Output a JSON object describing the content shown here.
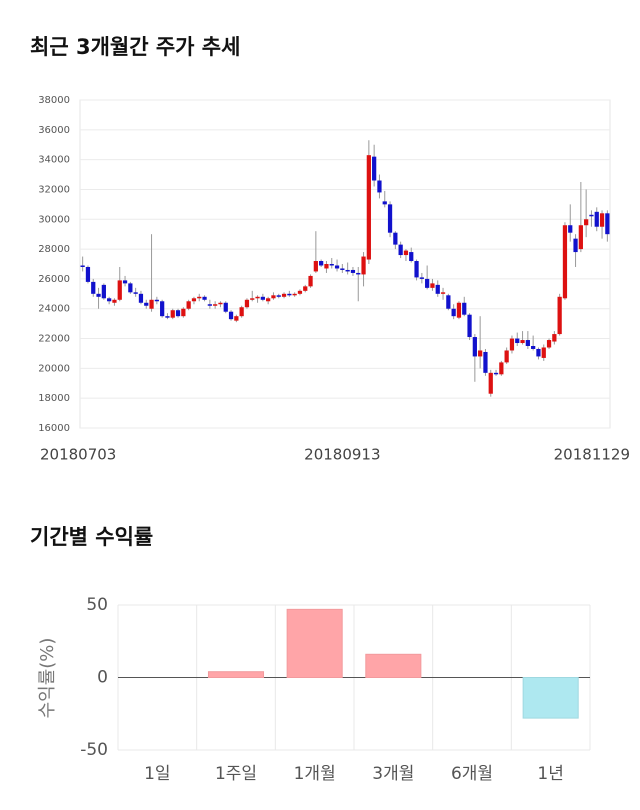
{
  "chart_data": [
    {
      "type": "candlestick",
      "title": "최근 3개월간 주가 추세",
      "categories": [
        "20180703",
        null,
        null,
        null,
        null,
        null,
        null,
        null,
        null,
        null,
        null,
        null,
        null,
        null,
        null,
        null,
        null,
        null,
        null,
        null,
        null,
        null,
        null,
        null,
        null,
        null,
        null,
        null,
        null,
        null,
        null,
        null,
        null,
        null,
        null,
        null,
        null,
        null,
        null,
        null,
        null,
        null,
        null,
        null,
        null,
        null,
        null,
        null,
        null,
        "20180913",
        null,
        null,
        null,
        null,
        null,
        null,
        null,
        null,
        null,
        null,
        null,
        null,
        null,
        null,
        null,
        null,
        null,
        null,
        null,
        null,
        null,
        null,
        null,
        null,
        null,
        null,
        null,
        null,
        null,
        null,
        null,
        null,
        null,
        null,
        null,
        null,
        null,
        null,
        null,
        null,
        null,
        null,
        null,
        null,
        null,
        null,
        null,
        null,
        null,
        "20181129"
      ],
      "values": [
        [
          26900,
          27500,
          26500,
          26800
        ],
        [
          26800,
          26900,
          25700,
          25800
        ],
        [
          25800,
          26000,
          24800,
          25000
        ],
        [
          25000,
          25400,
          24000,
          24800
        ],
        [
          25600,
          25700,
          24600,
          24700
        ],
        [
          24700,
          24800,
          24300,
          24500
        ],
        [
          24400,
          24700,
          24200,
          24600
        ],
        [
          24600,
          26800,
          24500,
          25900
        ],
        [
          25900,
          26200,
          25500,
          25700
        ],
        [
          25700,
          25800,
          25000,
          25100
        ],
        [
          25100,
          25400,
          24800,
          25000
        ],
        [
          25000,
          25200,
          24300,
          24400
        ],
        [
          24400,
          24600,
          24000,
          24200
        ],
        [
          24000,
          29000,
          23800,
          24600
        ],
        [
          24600,
          24800,
          24300,
          24500
        ],
        [
          24500,
          24600,
          23400,
          23500
        ],
        [
          23500,
          23700,
          23300,
          23400
        ],
        [
          23400,
          24000,
          23300,
          23900
        ],
        [
          23900,
          24000,
          23400,
          23500
        ],
        [
          23500,
          24100,
          23400,
          24000
        ],
        [
          24000,
          24600,
          23900,
          24500
        ],
        [
          24500,
          24800,
          24300,
          24700
        ],
        [
          24700,
          25000,
          24500,
          24800
        ],
        [
          24800,
          24900,
          24500,
          24600
        ],
        [
          24300,
          24600,
          24000,
          24200
        ],
        [
          24200,
          24500,
          24000,
          24300
        ],
        [
          24300,
          24500,
          24100,
          24400
        ],
        [
          24400,
          24500,
          23700,
          23800
        ],
        [
          23800,
          23900,
          23200,
          23300
        ],
        [
          23200,
          23600,
          23100,
          23500
        ],
        [
          23500,
          24200,
          23400,
          24100
        ],
        [
          24100,
          24700,
          24000,
          24600
        ],
        [
          24600,
          25200,
          24500,
          24700
        ],
        [
          24700,
          24900,
          24400,
          24800
        ],
        [
          24800,
          25000,
          24500,
          24600
        ],
        [
          24500,
          24800,
          24300,
          24700
        ],
        [
          24700,
          25100,
          24600,
          24900
        ],
        [
          24900,
          25000,
          24700,
          24800
        ],
        [
          24800,
          25100,
          24700,
          25000
        ],
        [
          25000,
          25200,
          24800,
          24900
        ],
        [
          24900,
          25100,
          24800,
          25000
        ],
        [
          25000,
          25300,
          24900,
          25200
        ],
        [
          25200,
          25600,
          25100,
          25500
        ],
        [
          25500,
          26300,
          25400,
          26200
        ],
        [
          26500,
          29200,
          26400,
          27200
        ],
        [
          27200,
          27300,
          26800,
          26900
        ],
        [
          26700,
          27200,
          26400,
          27000
        ],
        [
          27000,
          27400,
          26700,
          26900
        ],
        [
          26900,
          27300,
          26500,
          26700
        ],
        [
          26700,
          27000,
          26400,
          26600
        ],
        [
          26600,
          27100,
          26300,
          26500
        ],
        [
          26600,
          26800,
          26200,
          26400
        ],
        [
          26400,
          26800,
          24500,
          26300
        ],
        [
          26300,
          27800,
          25500,
          27500
        ],
        [
          27300,
          35300,
          27000,
          34300
        ],
        [
          34200,
          35000,
          32200,
          32600
        ],
        [
          32600,
          33000,
          31400,
          31800
        ],
        [
          31200,
          31900,
          30800,
          31000
        ],
        [
          31000,
          31200,
          28800,
          29100
        ],
        [
          29100,
          29200,
          28000,
          28300
        ],
        [
          28300,
          28500,
          27400,
          27600
        ],
        [
          27600,
          28000,
          27200,
          27900
        ],
        [
          27800,
          28100,
          27100,
          27200
        ],
        [
          27200,
          27300,
          25900,
          26100
        ],
        [
          26100,
          26400,
          25700,
          26000
        ],
        [
          26000,
          26900,
          25300,
          25400
        ],
        [
          25400,
          26000,
          25200,
          25700
        ],
        [
          25600,
          25900,
          24800,
          25000
        ],
        [
          25000,
          25400,
          24600,
          25100
        ],
        [
          24900,
          25000,
          23900,
          24000
        ],
        [
          24000,
          24300,
          23300,
          23500
        ],
        [
          23400,
          24500,
          23300,
          24400
        ],
        [
          24400,
          24800,
          23500,
          23600
        ],
        [
          23600,
          23700,
          21900,
          22100
        ],
        [
          22100,
          22300,
          19100,
          20800
        ],
        [
          20800,
          23500,
          20000,
          21200
        ],
        [
          21100,
          21300,
          19500,
          19700
        ],
        [
          18300,
          19900,
          18100,
          19700
        ],
        [
          19700,
          19900,
          19500,
          19600
        ],
        [
          19600,
          20500,
          19500,
          20400
        ],
        [
          20400,
          21400,
          20300,
          21200
        ],
        [
          21200,
          22200,
          21000,
          22000
        ],
        [
          22000,
          22400,
          21500,
          21700
        ],
        [
          21700,
          22500,
          21600,
          21900
        ],
        [
          21900,
          22500,
          21300,
          21500
        ],
        [
          21500,
          22200,
          21200,
          21300
        ],
        [
          21300,
          21400,
          20600,
          20800
        ],
        [
          20700,
          21600,
          20500,
          21400
        ],
        [
          21400,
          22000,
          21300,
          21900
        ],
        [
          21800,
          22500,
          21600,
          22300
        ],
        [
          22300,
          25000,
          22200,
          24800
        ],
        [
          24700,
          29800,
          24600,
          29600
        ],
        [
          29600,
          31000,
          28500,
          29100
        ],
        [
          28700,
          29000,
          26800,
          27800
        ],
        [
          28000,
          32500,
          27800,
          29600
        ],
        [
          29600,
          32000,
          28800,
          30000
        ],
        [
          30300,
          30600,
          29500,
          30200
        ],
        [
          30500,
          30800,
          29200,
          29500
        ],
        [
          29500,
          30600,
          28700,
          30400
        ],
        [
          30400,
          30600,
          28500,
          29000
        ]
      ],
      "up_color": "#dd1111",
      "down_color": "#1111cc",
      "ylim": [
        16000,
        38000
      ],
      "yticks": [
        16000,
        18000,
        20000,
        22000,
        24000,
        26000,
        28000,
        30000,
        32000,
        34000,
        36000,
        38000
      ],
      "grid": true
    },
    {
      "type": "bar",
      "title": "기간별 수익률",
      "ylabel": "수익률(%)",
      "categories": [
        "1일",
        "1주일",
        "1개월",
        "3개월",
        "6개월",
        "1년"
      ],
      "values": [
        0,
        4,
        47,
        16,
        0,
        -28
      ],
      "positive_color": "#ffa5a8",
      "negative_color": "#aee8f0",
      "ylim": [
        -50,
        50
      ],
      "yticks": [
        -50,
        0,
        50
      ],
      "grid": true
    }
  ]
}
